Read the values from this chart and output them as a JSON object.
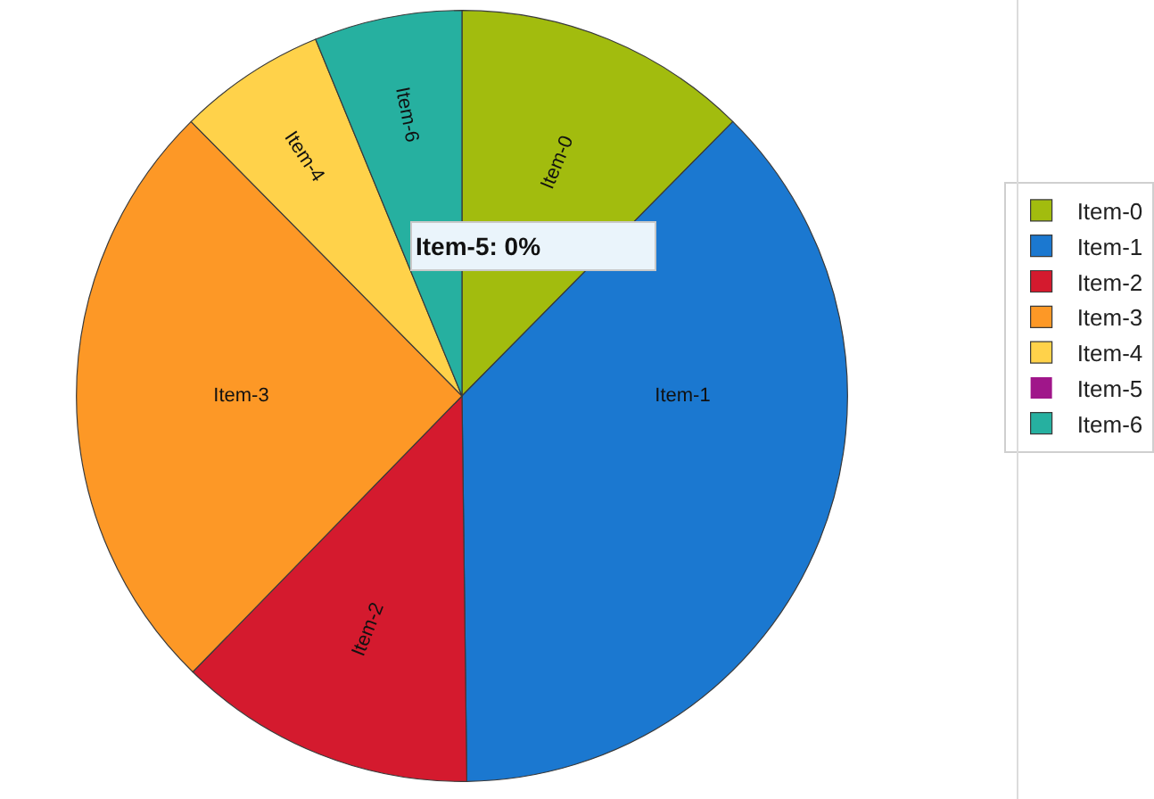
{
  "chart_data": {
    "type": "pie",
    "categories": [
      "Item-0",
      "Item-1",
      "Item-2",
      "Item-3",
      "Item-4",
      "Item-5",
      "Item-6"
    ],
    "values": [
      12.4,
      37.4,
      12.5,
      25.3,
      6.2,
      0,
      6.2
    ],
    "colors": [
      "#a2bc0e",
      "#1b78d0",
      "#d41a2e",
      "#fd9826",
      "#ffd24a",
      "#a0168a",
      "#26b0a0"
    ],
    "legend": "right",
    "annotations": [
      "Item-5: 0%"
    ]
  }
}
